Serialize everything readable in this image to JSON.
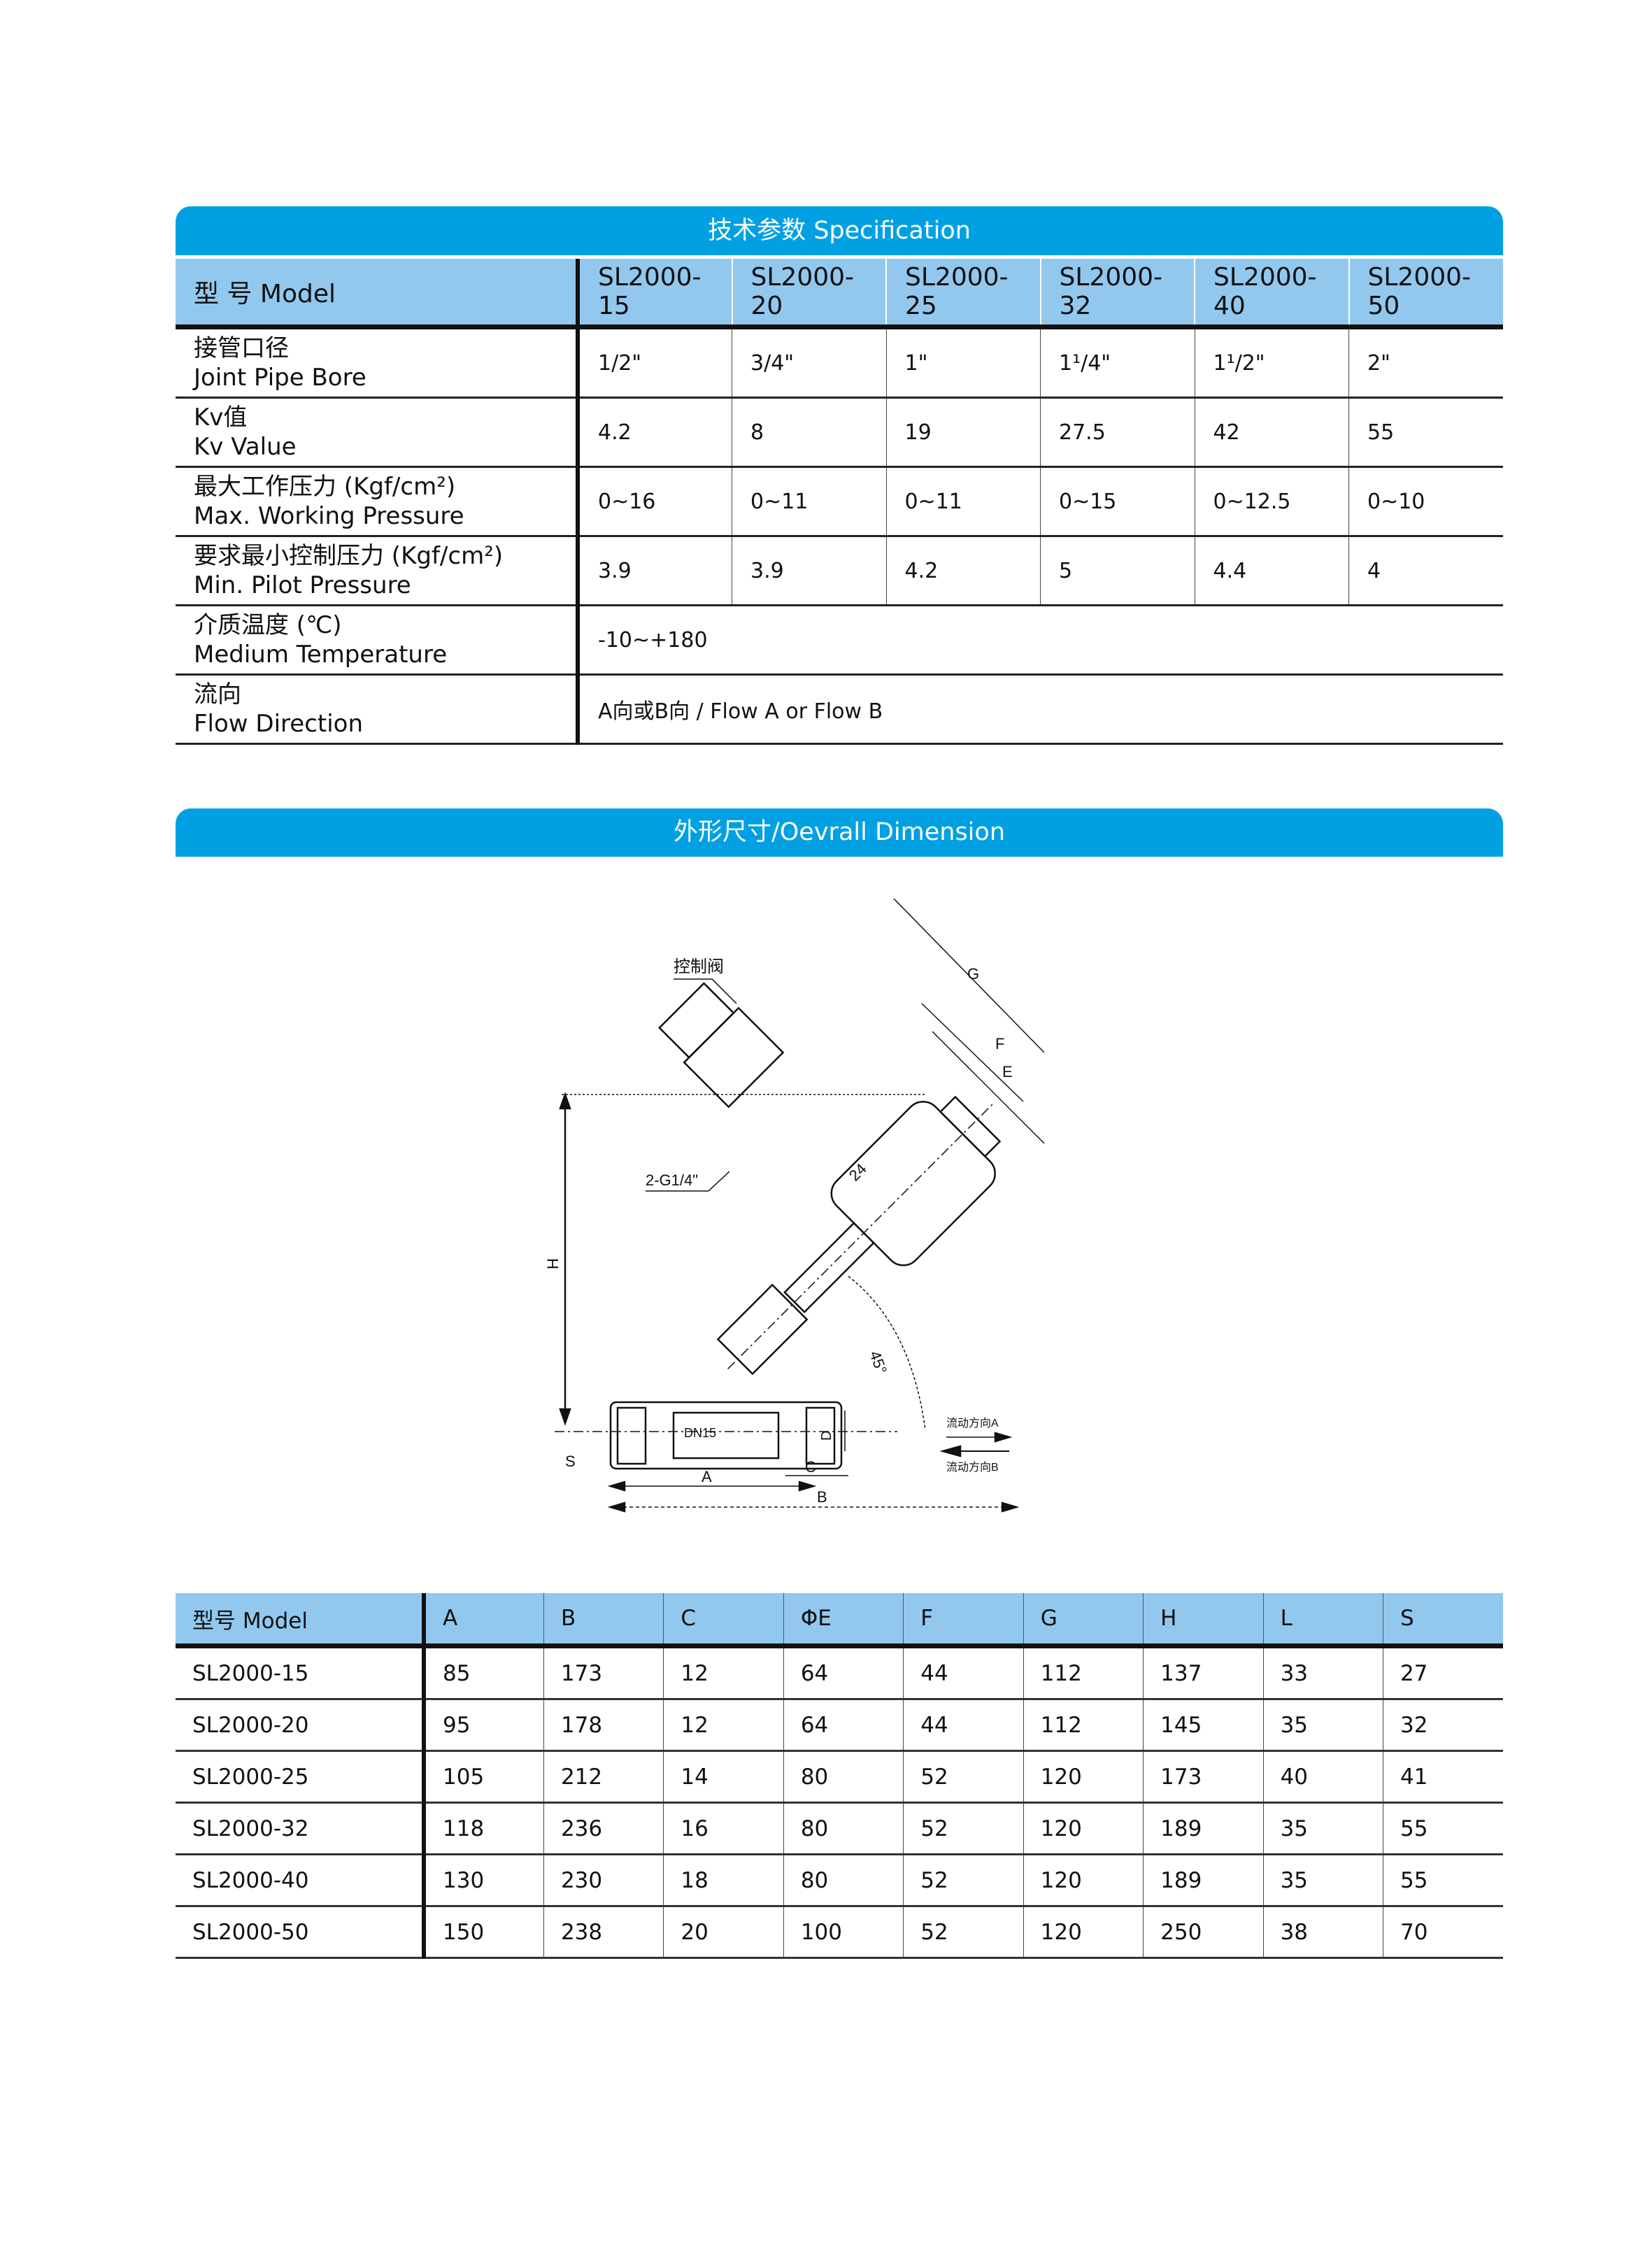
{
  "spec": {
    "title": "技术参数 Specification",
    "header_label": "型 号 Model",
    "models": [
      "SL2000-15",
      "SL2000-20",
      "SL2000-25",
      "SL2000-32",
      "SL2000-40",
      "SL2000-50"
    ],
    "rows": [
      {
        "label_cn": "接管口径",
        "label_en": "Joint Pipe Bore",
        "values": [
          "1/2\"",
          "3/4\"",
          "1\"",
          "1¹/4\"",
          "1¹/2\"",
          "2\""
        ]
      },
      {
        "label_cn": "Kv值",
        "label_en": "Kv Value",
        "values": [
          "4.2",
          "8",
          "19",
          "27.5",
          "42",
          "55"
        ]
      },
      {
        "label_cn": "最大工作压力 (Kgf/cm²)",
        "label_en": "Max. Working Pressure",
        "values": [
          "0~16",
          "0~11",
          "0~11",
          "0~15",
          "0~12.5",
          "0~10"
        ]
      },
      {
        "label_cn": "要求最小控制压力 (Kgf/cm²)",
        "label_en": "Min. Pilot Pressure",
        "values": [
          "3.9",
          "3.9",
          "4.2",
          "5",
          "4.4",
          "4"
        ]
      },
      {
        "label_cn": "介质温度 (℃)",
        "label_en": "Medium Temperature",
        "value": "-10~+180"
      },
      {
        "label_cn": "流向",
        "label_en": "Flow Direction",
        "value": "A向或B向 / Flow A or Flow B"
      }
    ]
  },
  "dimension": {
    "title": "外形尺寸/Oevrall Dimension",
    "diagram_labels": {
      "control_valve": "控制阀",
      "port": "2-G1/4\"",
      "size_24": "24",
      "angle": "45°",
      "dn": "DN15",
      "G": "G",
      "F": "F",
      "E": "E",
      "H": "H",
      "S": "S",
      "A": "A",
      "B": "B",
      "C": "C",
      "D": "D",
      "flow_a": "流动方向A",
      "flow_b": "流动方向B"
    },
    "columns": [
      "型号 Model",
      "A",
      "B",
      "C",
      "ΦE",
      "F",
      "G",
      "H",
      "L",
      "S"
    ],
    "rows": [
      [
        "SL2000-15",
        "85",
        "173",
        "12",
        "64",
        "44",
        "112",
        "137",
        "33",
        "27"
      ],
      [
        "SL2000-20",
        "95",
        "178",
        "12",
        "64",
        "44",
        "112",
        "145",
        "35",
        "32"
      ],
      [
        "SL2000-25",
        "105",
        "212",
        "14",
        "80",
        "52",
        "120",
        "173",
        "40",
        "41"
      ],
      [
        "SL2000-32",
        "118",
        "236",
        "16",
        "80",
        "52",
        "120",
        "189",
        "35",
        "55"
      ],
      [
        "SL2000-40",
        "130",
        "230",
        "18",
        "80",
        "52",
        "120",
        "189",
        "35",
        "55"
      ],
      [
        "SL2000-50",
        "150",
        "238",
        "20",
        "100",
        "52",
        "120",
        "250",
        "38",
        "70"
      ]
    ]
  }
}
